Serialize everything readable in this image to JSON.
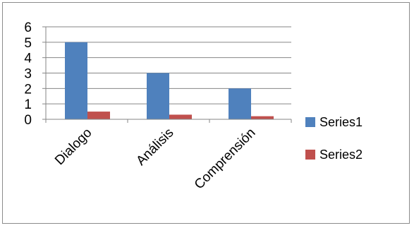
{
  "chart_data": {
    "type": "bar",
    "categories": [
      "Dialogo",
      "Análisis",
      "Comprensión"
    ],
    "series": [
      {
        "name": "Series1",
        "values": [
          5,
          3,
          2
        ],
        "color": "#4f81bd"
      },
      {
        "name": "Series2",
        "values": [
          0.5,
          0.3,
          0.2
        ],
        "color": "#c0504d"
      }
    ],
    "yticks": [
      "0",
      "1",
      "2",
      "3",
      "4",
      "5",
      "6"
    ],
    "ylim": [
      0,
      6
    ],
    "grid": true,
    "legend_position": "right"
  }
}
